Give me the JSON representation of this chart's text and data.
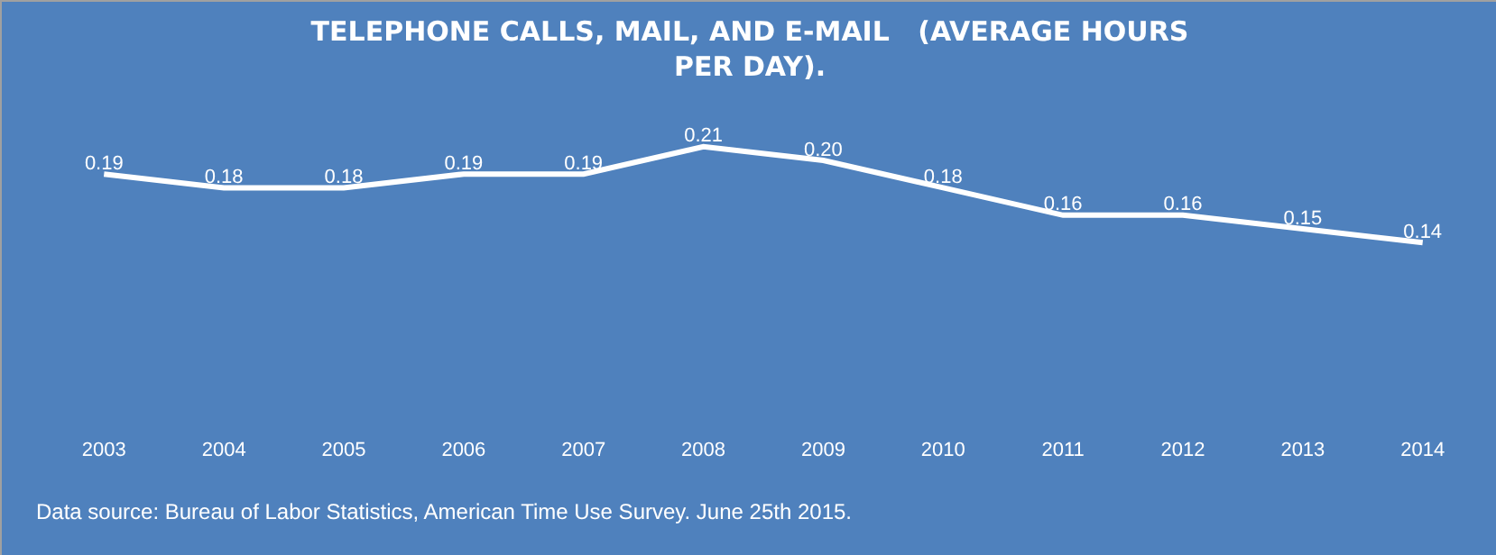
{
  "chart_data": {
    "type": "line",
    "title": "TELEPHONE CALLS, MAIL, AND E-MAIL   (AVERAGE HOURS PER DAY).",
    "categories": [
      "2003",
      "2004",
      "2005",
      "2006",
      "2007",
      "2008",
      "2009",
      "2010",
      "2011",
      "2012",
      "2013",
      "2014"
    ],
    "series": [
      {
        "color": "#ffffff",
        "values": [
          0.19,
          0.18,
          0.18,
          0.19,
          0.19,
          0.21,
          0.2,
          0.18,
          0.16,
          0.16,
          0.15,
          0.14
        ],
        "value_labels": [
          "0.19",
          "0.18",
          "0.18",
          "0.19",
          "0.19",
          "0.21",
          "0.20",
          "0.18",
          "0.16",
          "0.16",
          "0.15",
          "0.14"
        ]
      }
    ],
    "annotations": [
      "Data source: Bureau of Labor Statistics, American Time Use Survey. June 25th 2015."
    ],
    "grid": false,
    "marker": "none",
    "line_style": "solid"
  }
}
